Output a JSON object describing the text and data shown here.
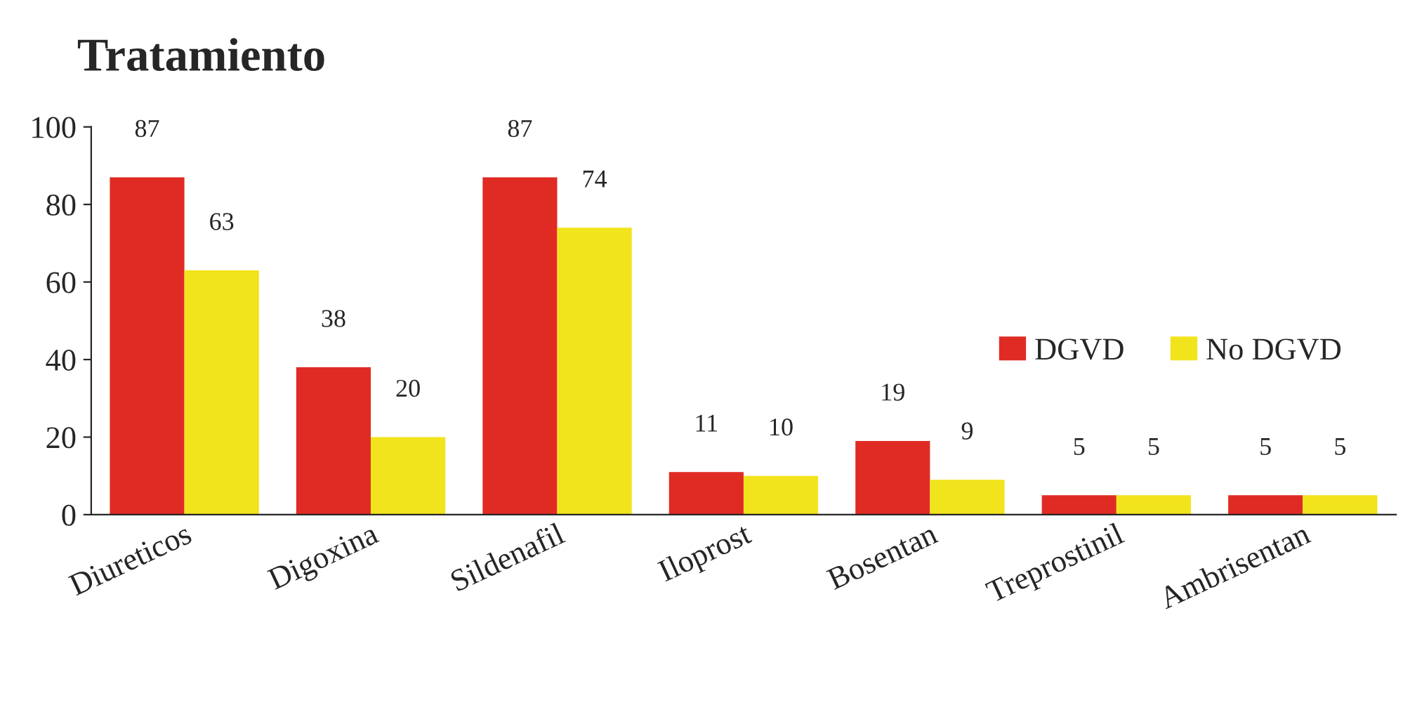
{
  "chart_data": {
    "type": "bar",
    "title": "Tratamiento",
    "categories": [
      "Diureticos",
      "Digoxina",
      "Sildenafil",
      "Iloprost",
      "Bosentan",
      "Treprostinil",
      "Ambrisentan"
    ],
    "series": [
      {
        "name": "DGVD",
        "color": "#e02b24",
        "values": [
          87,
          38,
          87,
          11,
          19,
          5,
          5
        ]
      },
      {
        "name": "No DGVD",
        "color": "#f2e41c",
        "values": [
          63,
          20,
          74,
          10,
          9,
          5,
          5
        ]
      }
    ],
    "ylim": [
      0,
      100
    ],
    "yticks": [
      0,
      20,
      40,
      60,
      80,
      100
    ],
    "grid": false,
    "legend": "right",
    "data_labels": true
  }
}
